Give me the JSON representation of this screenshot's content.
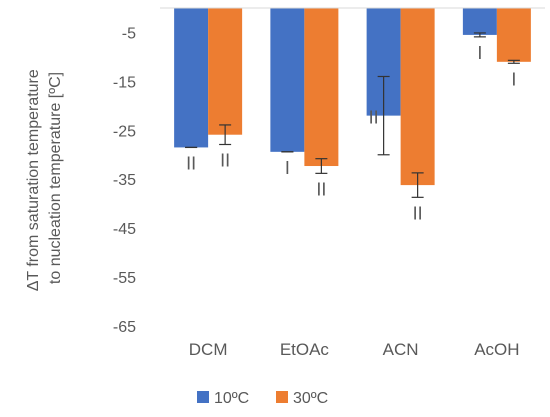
{
  "chart_data": {
    "type": "bar",
    "ylabel_lines": [
      "ΔT from saturation temperature",
      "to nucleation temperature [ºC]"
    ],
    "xlabel": "",
    "categories": [
      "DCM",
      "EtOAc",
      "ACN",
      "AcOH"
    ],
    "ylim": [
      -65,
      0
    ],
    "yticks": [
      -5,
      -15,
      -25,
      -35,
      -45,
      -55,
      -65
    ],
    "grid": false,
    "legend_position": "bottom",
    "series": [
      {
        "name": "10ºC",
        "color": "#4472C4",
        "values": [
          -28.5,
          -29.4,
          -22.0,
          -5.5
        ],
        "error": [
          0,
          0,
          8.0,
          0.4
        ],
        "polymorph": [
          "II",
          "I",
          "II",
          "I"
        ]
      },
      {
        "name": "30ºC",
        "color": "#ED7D31",
        "values": [
          -25.9,
          -32.3,
          -36.2,
          -11.0
        ],
        "error": [
          2.0,
          1.5,
          2.5,
          0.3
        ],
        "polymorph": [
          "II",
          "II",
          "II",
          "I"
        ]
      }
    ]
  }
}
